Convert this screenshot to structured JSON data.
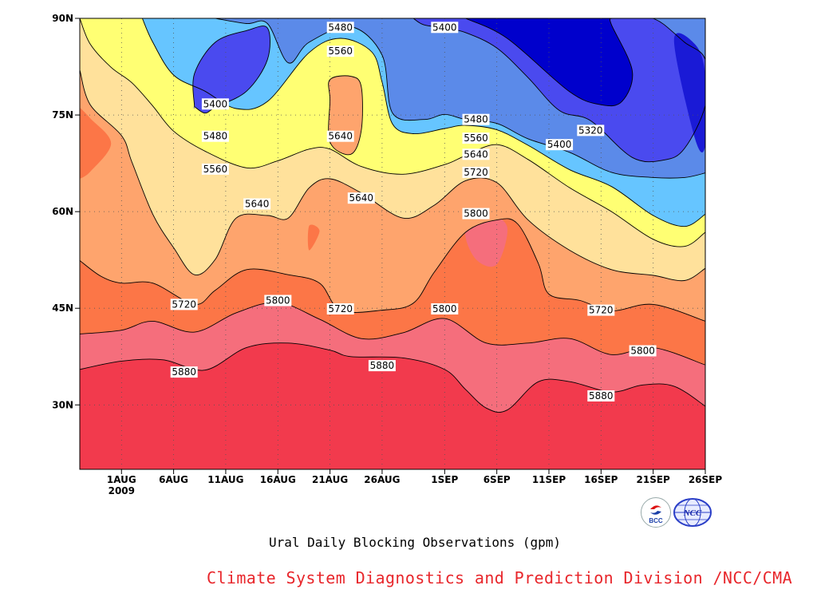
{
  "colors": {
    "below_5320": "#0000cc",
    "5320_5400": "#4a4aef",
    "5400_5480": "#5b8ae9",
    "5480_5560": "#66c5ff",
    "5560_5640": "#ffff73",
    "5640_5720": "#ffe19b",
    "5720_5800": "#fea46d",
    "5800_5880": "#fc7647",
    "5880_5960": "#f56e7c",
    "above_5960": "#f23a4d",
    "footer_text": "#e8262b"
  },
  "chart_data": {
    "type": "heatmap",
    "subtype": "filled-contour (time-latitude)",
    "title": "Ural Daily Blocking Observations (gpm)",
    "xlabel": "",
    "ylabel": "",
    "xlim": [
      "2009-07-28",
      "2009-09-26"
    ],
    "ylim": [
      20,
      90
    ],
    "x_ticks": [
      {
        "date": "2009-08-01",
        "label": "1AUG",
        "sublabel": "2009"
      },
      {
        "date": "2009-08-06",
        "label": "6AUG"
      },
      {
        "date": "2009-08-11",
        "label": "11AUG"
      },
      {
        "date": "2009-08-16",
        "label": "16AUG"
      },
      {
        "date": "2009-08-21",
        "label": "21AUG"
      },
      {
        "date": "2009-08-26",
        "label": "26AUG"
      },
      {
        "date": "2009-09-01",
        "label": "1SEP"
      },
      {
        "date": "2009-09-06",
        "label": "6SEP"
      },
      {
        "date": "2009-09-11",
        "label": "11SEP"
      },
      {
        "date": "2009-09-16",
        "label": "16SEP"
      },
      {
        "date": "2009-09-21",
        "label": "21SEP"
      },
      {
        "date": "2009-09-26",
        "label": "26SEP"
      }
    ],
    "y_ticks": [
      {
        "value": 30,
        "label": "30N"
      },
      {
        "value": 45,
        "label": "45N"
      },
      {
        "value": 60,
        "label": "60N"
      },
      {
        "value": 75,
        "label": "75N"
      },
      {
        "value": 90,
        "label": "90N"
      }
    ],
    "grid": true,
    "contour_levels": [
      5320,
      5400,
      5480,
      5560,
      5640,
      5720,
      5800,
      5880,
      5960
    ],
    "contours": [
      {
        "level": 5960,
        "points": [
          [
            "2009-07-28",
            35.5
          ],
          [
            "2009-08-01",
            36.8
          ],
          [
            "2009-08-05",
            37.0
          ],
          [
            "2009-08-09",
            35.4
          ],
          [
            "2009-08-13",
            38.9
          ],
          [
            "2009-08-17",
            39.6
          ],
          [
            "2009-08-21",
            38.5
          ],
          [
            "2009-08-23",
            37.5
          ],
          [
            "2009-08-28",
            37.3
          ],
          [
            "2009-09-01",
            35.5
          ],
          [
            "2009-09-03",
            32.4
          ],
          [
            "2009-09-05",
            29.5
          ],
          [
            "2009-09-07",
            29.2
          ],
          [
            "2009-09-10",
            33.6
          ],
          [
            "2009-09-13",
            33.6
          ],
          [
            "2009-09-17",
            32.0
          ],
          [
            "2009-09-20",
            33.1
          ],
          [
            "2009-09-23",
            32.9
          ],
          [
            "2009-09-26",
            29.8
          ]
        ]
      },
      {
        "level": 5880,
        "points": [
          [
            "2009-07-28",
            41.0
          ],
          [
            "2009-08-01",
            41.6
          ],
          [
            "2009-08-04",
            43.0
          ],
          [
            "2009-08-08",
            41.3
          ],
          [
            "2009-08-12",
            44.3
          ],
          [
            "2009-08-16",
            45.9
          ],
          [
            "2009-08-20",
            43.3
          ],
          [
            "2009-08-24",
            40.3
          ],
          [
            "2009-08-28",
            41.2
          ],
          [
            "2009-09-01",
            43.4
          ],
          [
            "2009-09-05",
            39.6
          ],
          [
            "2009-09-09",
            39.6
          ],
          [
            "2009-09-13",
            40.3
          ],
          [
            "2009-09-17",
            37.8
          ],
          [
            "2009-09-21",
            38.9
          ],
          [
            "2009-09-26",
            36.2
          ]
        ]
      },
      {
        "level": 5800,
        "points": [
          [
            "2009-07-28",
            52.4
          ],
          [
            "2009-07-30",
            50.0
          ],
          [
            "2009-08-01",
            48.9
          ],
          [
            "2009-08-04",
            48.9
          ],
          [
            "2009-08-08",
            45.6
          ],
          [
            "2009-08-10",
            47.8
          ],
          [
            "2009-08-13",
            51.0
          ],
          [
            "2009-08-17",
            50.2
          ],
          [
            "2009-08-20",
            48.9
          ],
          [
            "2009-08-22",
            44.7
          ],
          [
            "2009-08-26",
            44.7
          ],
          [
            "2009-08-29",
            45.8
          ],
          [
            "2009-08-31",
            50.6
          ],
          [
            "2009-09-03",
            56.8
          ],
          [
            "2009-09-06",
            58.7
          ],
          [
            "2009-09-08",
            58.1
          ],
          [
            "2009-09-10",
            51.9
          ],
          [
            "2009-09-11",
            47.2
          ],
          [
            "2009-09-14",
            46.2
          ],
          [
            "2009-09-17",
            44.6
          ],
          [
            "2009-09-21",
            45.6
          ],
          [
            "2009-09-26",
            43.0
          ]
        ]
      },
      {
        "level": 5720,
        "points": [
          [
            "2009-07-28",
            82.0
          ],
          [
            "2009-07-29",
            76.6
          ],
          [
            "2009-08-01",
            71.8
          ],
          [
            "2009-08-02",
            67.7
          ],
          [
            "2009-08-04",
            59.6
          ],
          [
            "2009-08-06",
            54.4
          ],
          [
            "2009-08-08",
            50.2
          ],
          [
            "2009-08-10",
            52.6
          ],
          [
            "2009-08-12",
            59.0
          ],
          [
            "2009-08-15",
            59.4
          ],
          [
            "2009-08-17",
            59.0
          ],
          [
            "2009-08-19",
            63.7
          ],
          [
            "2009-08-21",
            65.1
          ],
          [
            "2009-08-24",
            62.9
          ],
          [
            "2009-08-28",
            59.0
          ],
          [
            "2009-08-31",
            61.0
          ],
          [
            "2009-09-03",
            64.8
          ],
          [
            "2009-09-06",
            64.5
          ],
          [
            "2009-09-09",
            58.7
          ],
          [
            "2009-09-13",
            54.0
          ],
          [
            "2009-09-17",
            51.0
          ],
          [
            "2009-09-21",
            50.1
          ],
          [
            "2009-09-24",
            49.3
          ],
          [
            "2009-09-26",
            51.2
          ]
        ]
      },
      {
        "level": 5640,
        "points": [
          [
            "2009-07-28",
            90.0
          ],
          [
            "2009-07-29",
            86.0
          ],
          [
            "2009-07-31",
            82.4
          ],
          [
            "2009-08-02",
            80.0
          ],
          [
            "2009-08-04",
            76.4
          ],
          [
            "2009-08-06",
            72.5
          ],
          [
            "2009-08-09",
            69.4
          ],
          [
            "2009-08-13",
            66.8
          ],
          [
            "2009-08-16",
            67.9
          ],
          [
            "2009-08-19",
            69.7
          ],
          [
            "2009-08-21",
            69.7
          ],
          [
            "2009-08-24",
            67.0
          ],
          [
            "2009-08-28",
            65.8
          ],
          [
            "2009-09-01",
            67.3
          ],
          [
            "2009-09-03",
            68.7
          ],
          [
            "2009-09-06",
            70.4
          ],
          [
            "2009-09-09",
            68.1
          ],
          [
            "2009-09-13",
            63.7
          ],
          [
            "2009-09-17",
            60.0
          ],
          [
            "2009-09-21",
            55.7
          ],
          [
            "2009-09-24",
            54.6
          ],
          [
            "2009-09-26",
            56.8
          ]
        ]
      },
      {
        "level": 5640,
        "closed": true,
        "points": [
          [
            "2009-08-21",
            80.5
          ],
          [
            "2009-08-23",
            81.0
          ],
          [
            "2009-08-24",
            79.4
          ],
          [
            "2009-08-24",
            72.6
          ],
          [
            "2009-08-23",
            68.9
          ],
          [
            "2009-08-21",
            70.8
          ],
          [
            "2009-08-21",
            77.3
          ]
        ]
      },
      {
        "level": 5560,
        "points": [
          [
            "2009-08-03",
            90.0
          ],
          [
            "2009-08-04",
            86.3
          ],
          [
            "2009-08-06",
            81.2
          ],
          [
            "2009-08-09",
            78.7
          ],
          [
            "2009-08-12",
            76.0
          ],
          [
            "2009-08-15",
            77.1
          ],
          [
            "2009-08-19",
            84.7
          ],
          [
            "2009-08-22",
            86.9
          ],
          [
            "2009-08-25",
            84.8
          ],
          [
            "2009-08-26",
            80.1
          ],
          [
            "2009-08-27",
            73.6
          ],
          [
            "2009-08-29",
            72.1
          ],
          [
            "2009-09-01",
            72.9
          ],
          [
            "2009-09-03",
            73.4
          ],
          [
            "2009-09-06",
            72.7
          ],
          [
            "2009-09-09",
            70.3
          ],
          [
            "2009-09-13",
            66.5
          ],
          [
            "2009-09-17",
            63.9
          ],
          [
            "2009-09-21",
            59.4
          ],
          [
            "2009-09-24",
            57.7
          ],
          [
            "2009-09-26",
            59.6
          ]
        ]
      },
      {
        "level": 5480,
        "points": [
          [
            "2009-08-10",
            90.0
          ],
          [
            "2009-08-13",
            89.2
          ],
          [
            "2009-08-15",
            89.2
          ],
          [
            "2009-08-17",
            83.1
          ],
          [
            "2009-08-19",
            86.3
          ],
          [
            "2009-08-23",
            88.7
          ],
          [
            "2009-08-26",
            84.3
          ],
          [
            "2009-08-27",
            75.3
          ],
          [
            "2009-08-30",
            74.3
          ],
          [
            "2009-09-01",
            75.1
          ],
          [
            "2009-09-03",
            74.3
          ],
          [
            "2009-09-06",
            73.7
          ],
          [
            "2009-09-09",
            71.3
          ],
          [
            "2009-09-13",
            69.2
          ],
          [
            "2009-09-17",
            66.1
          ],
          [
            "2009-09-21",
            65.3
          ],
          [
            "2009-09-24",
            65.3
          ],
          [
            "2009-09-26",
            66.0
          ]
        ]
      },
      {
        "level": 5400,
        "points": [
          [
            "2009-08-08",
            76.3
          ],
          [
            "2009-08-08",
            81.4
          ],
          [
            "2009-08-10",
            86.3
          ],
          [
            "2009-08-13",
            88.1
          ],
          [
            "2009-08-15",
            88.5
          ],
          [
            "2009-08-15",
            83.6
          ],
          [
            "2009-08-13",
            78.7
          ],
          [
            "2009-08-10",
            76.2
          ],
          [
            "2009-08-09",
            75.3
          ],
          [
            "2009-08-08",
            76.3
          ]
        ]
      },
      {
        "level": 5400,
        "points": [
          [
            "2009-08-29",
            90.0
          ],
          [
            "2009-08-30",
            89.0
          ],
          [
            "2009-09-01",
            88.5
          ],
          [
            "2009-09-03",
            87.8
          ],
          [
            "2009-09-06",
            85.4
          ],
          [
            "2009-09-09",
            80.8
          ],
          [
            "2009-09-12",
            75.7
          ],
          [
            "2009-09-15",
            74.1
          ],
          [
            "2009-09-19",
            68.4
          ],
          [
            "2009-09-22",
            68.0
          ],
          [
            "2009-09-24",
            69.8
          ],
          [
            "2009-09-26",
            76.5
          ],
          [
            "2009-09-26",
            83.6
          ],
          [
            "2009-09-24",
            86.3
          ],
          [
            "2009-09-22",
            89.1
          ],
          [
            "2009-09-21",
            90.0
          ]
        ]
      },
      {
        "level": 5320,
        "points": [
          [
            "2009-09-03",
            90.0
          ],
          [
            "2009-09-07",
            86.9
          ],
          [
            "2009-09-13",
            78.6
          ],
          [
            "2009-09-16",
            76.6
          ],
          [
            "2009-09-18",
            77.1
          ],
          [
            "2009-09-19",
            81.8
          ],
          [
            "2009-09-17",
            89.0
          ],
          [
            "2009-09-17",
            90.0
          ]
        ]
      }
    ],
    "contour_labels": [
      {
        "text": "5480",
        "date": "2009-08-22",
        "lat": 88.6
      },
      {
        "text": "5400",
        "date": "2009-09-01",
        "lat": 88.6
      },
      {
        "text": "5560",
        "date": "2009-08-22",
        "lat": 84.9
      },
      {
        "text": "5400",
        "date": "2009-08-10",
        "lat": 76.7
      },
      {
        "text": "5480",
        "date": "2009-08-10",
        "lat": 71.7
      },
      {
        "text": "5640",
        "date": "2009-08-22",
        "lat": 71.7
      },
      {
        "text": "5480",
        "date": "2009-09-04",
        "lat": 74.3
      },
      {
        "text": "5560",
        "date": "2009-09-04",
        "lat": 71.4
      },
      {
        "text": "5320",
        "date": "2009-09-15",
        "lat": 72.6
      },
      {
        "text": "5400",
        "date": "2009-09-12",
        "lat": 70.4
      },
      {
        "text": "5640",
        "date": "2009-09-04",
        "lat": 68.9
      },
      {
        "text": "5560",
        "date": "2009-08-10",
        "lat": 66.6
      },
      {
        "text": "5720",
        "date": "2009-09-04",
        "lat": 66.1
      },
      {
        "text": "5640",
        "date": "2009-08-14",
        "lat": 61.2
      },
      {
        "text": "5640",
        "date": "2009-08-24",
        "lat": 62.1
      },
      {
        "text": "5800",
        "date": "2009-09-04",
        "lat": 59.7
      },
      {
        "text": "5720",
        "date": "2009-08-07",
        "lat": 45.6
      },
      {
        "text": "5800",
        "date": "2009-08-16",
        "lat": 46.2
      },
      {
        "text": "5720",
        "date": "2009-08-22",
        "lat": 44.9
      },
      {
        "text": "5800",
        "date": "2009-09-01",
        "lat": 44.9
      },
      {
        "text": "5720",
        "date": "2009-09-16",
        "lat": 44.7
      },
      {
        "text": "5800",
        "date": "2009-09-20",
        "lat": 38.4
      },
      {
        "text": "5880",
        "date": "2009-08-07",
        "lat": 35.1
      },
      {
        "text": "5880",
        "date": "2009-08-26",
        "lat": 36.1
      },
      {
        "text": "5880",
        "date": "2009-09-16",
        "lat": 31.4
      }
    ]
  },
  "title": "Ural Daily Blocking Observations (gpm)",
  "footer": "Climate System Diagnostics and Prediction Division /NCC/CMA",
  "logos": [
    {
      "name": "bcc-logo",
      "text": "BCC",
      "icon": "bcc-emblem"
    },
    {
      "name": "ncc-logo",
      "text": "NCC",
      "icon": "ncc-globe"
    }
  ]
}
